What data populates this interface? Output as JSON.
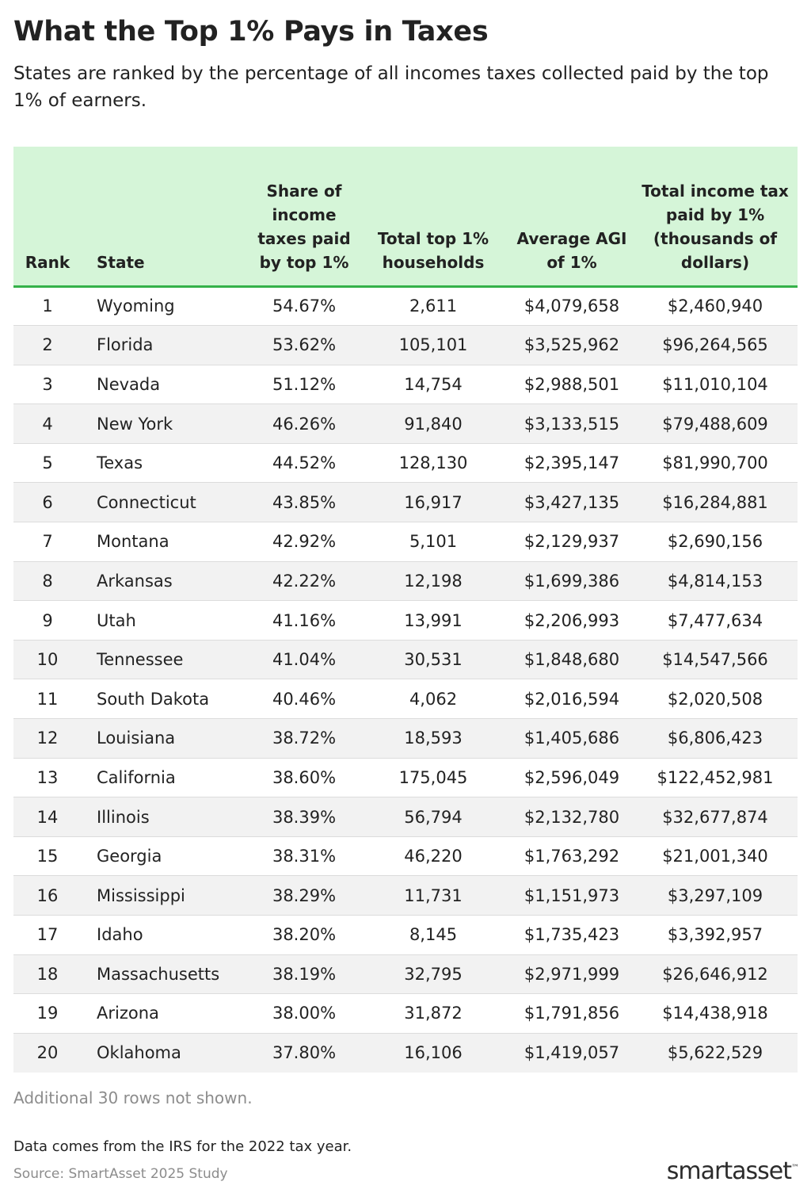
{
  "title": "What the Top 1% Pays in Taxes",
  "subtitle": "States are ranked by the percentage of all incomes taxes collected paid by the top 1% of earners.",
  "chart_data": {
    "type": "table",
    "columns": [
      "Rank",
      "State",
      "Share of income taxes paid by top 1%",
      "Total top 1% households",
      "Average AGI of 1%",
      "Total income tax paid by 1% (thousands of dollars)"
    ],
    "rows": [
      [
        "1",
        "Wyoming",
        "54.67%",
        "2,611",
        "$4,079,658",
        "$2,460,940"
      ],
      [
        "2",
        "Florida",
        "53.62%",
        "105,101",
        "$3,525,962",
        "$96,264,565"
      ],
      [
        "3",
        "Nevada",
        "51.12%",
        "14,754",
        "$2,988,501",
        "$11,010,104"
      ],
      [
        "4",
        "New York",
        "46.26%",
        "91,840",
        "$3,133,515",
        "$79,488,609"
      ],
      [
        "5",
        "Texas",
        "44.52%",
        "128,130",
        "$2,395,147",
        "$81,990,700"
      ],
      [
        "6",
        "Connecticut",
        "43.85%",
        "16,917",
        "$3,427,135",
        "$16,284,881"
      ],
      [
        "7",
        "Montana",
        "42.92%",
        "5,101",
        "$2,129,937",
        "$2,690,156"
      ],
      [
        "8",
        "Arkansas",
        "42.22%",
        "12,198",
        "$1,699,386",
        "$4,814,153"
      ],
      [
        "9",
        "Utah",
        "41.16%",
        "13,991",
        "$2,206,993",
        "$7,477,634"
      ],
      [
        "10",
        "Tennessee",
        "41.04%",
        "30,531",
        "$1,848,680",
        "$14,547,566"
      ],
      [
        "11",
        "South Dakota",
        "40.46%",
        "4,062",
        "$2,016,594",
        "$2,020,508"
      ],
      [
        "12",
        "Louisiana",
        "38.72%",
        "18,593",
        "$1,405,686",
        "$6,806,423"
      ],
      [
        "13",
        "California",
        "38.60%",
        "175,045",
        "$2,596,049",
        "$122,452,981"
      ],
      [
        "14",
        "Illinois",
        "38.39%",
        "56,794",
        "$2,132,780",
        "$32,677,874"
      ],
      [
        "15",
        "Georgia",
        "38.31%",
        "46,220",
        "$1,763,292",
        "$21,001,340"
      ],
      [
        "16",
        "Mississippi",
        "38.29%",
        "11,731",
        "$1,151,973",
        "$3,297,109"
      ],
      [
        "17",
        "Idaho",
        "38.20%",
        "8,145",
        "$1,735,423",
        "$3,392,957"
      ],
      [
        "18",
        "Massachusetts",
        "38.19%",
        "32,795",
        "$2,971,999",
        "$26,646,912"
      ],
      [
        "19",
        "Arizona",
        "38.00%",
        "31,872",
        "$1,791,856",
        "$14,438,918"
      ],
      [
        "20",
        "Oklahoma",
        "37.80%",
        "16,106",
        "$1,419,057",
        "$5,622,529"
      ]
    ]
  },
  "footer": {
    "more_rows": "Additional 30 rows not shown.",
    "note": "Data comes from the IRS for the 2022 tax year.",
    "source": "Source: SmartAsset 2025 Study",
    "logo": "smartasset",
    "logo_mark": "™"
  },
  "colors": {
    "header_bg": "#d5f5d8",
    "header_rule": "#35b24a",
    "stripe": "#f2f2f2"
  }
}
